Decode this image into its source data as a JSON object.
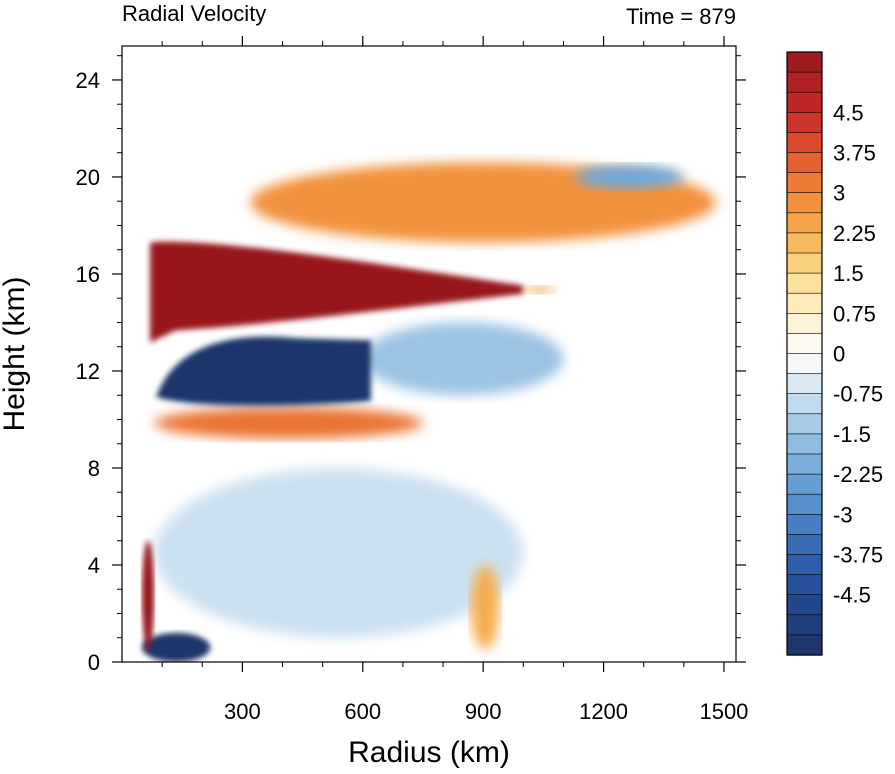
{
  "chart_data": {
    "type": "heatmap",
    "title": "Radial Velocity",
    "subtitle_right": "Time = 879",
    "xlabel": "Radius (km)",
    "ylabel": "Height (km)",
    "xlim": [
      0,
      1530
    ],
    "ylim": [
      0,
      25.4
    ],
    "xticks": [
      300,
      600,
      900,
      1200,
      1500
    ],
    "xtick_labels": [
      "300",
      "600",
      "900",
      "1200",
      "1500"
    ],
    "yticks": [
      0,
      4,
      8,
      12,
      16,
      20,
      24
    ],
    "ytick_labels": [
      "0",
      "4",
      "8",
      "12",
      "16",
      "20",
      "24"
    ],
    "colorbar": {
      "min": -5.625,
      "max": 5.625,
      "step": 0.375,
      "tick_values": [
        4.5,
        3.75,
        3,
        2.25,
        1.5,
        0.75,
        0,
        -0.75,
        -1.5,
        -2.25,
        -3,
        -3.75,
        -4.5
      ],
      "tick_labels": [
        "4.5",
        "3.75",
        "3",
        "2.25",
        "1.5",
        "0.75",
        "0",
        "-0.75",
        "-1.5",
        "-2.25",
        "-3",
        "-3.75",
        "-4.5"
      ]
    },
    "features": [
      {
        "name": "upper outflow jet",
        "value": 5.6,
        "x_range": [
          70,
          1000
        ],
        "z_range": [
          14,
          17.3
        ]
      },
      {
        "name": "outflow tail",
        "value": 2.5,
        "x_range": [
          1000,
          1080
        ],
        "z_range": [
          15.2,
          15.5
        ]
      },
      {
        "name": "upper inflow core",
        "value": -5.5,
        "x_range": [
          85,
          620
        ],
        "z_range": [
          10.6,
          13.6
        ]
      },
      {
        "name": "upper inflow extension",
        "value": -1.5,
        "x_range": [
          600,
          1100
        ],
        "z_range": [
          11,
          14
        ]
      },
      {
        "name": "mid-level outflow band",
        "value": 3.3,
        "x_range": [
          80,
          750
        ],
        "z_range": [
          9.2,
          10.5
        ]
      },
      {
        "name": "high-level outflow patches",
        "value": 2.8,
        "x_range": [
          320,
          1480
        ],
        "z_range": [
          17.3,
          20.6
        ]
      },
      {
        "name": "high-level inflow patch",
        "value": -2.2,
        "x_range": [
          1130,
          1400
        ],
        "z_range": [
          19.5,
          20.5
        ]
      },
      {
        "name": "boundary-layer inflow",
        "value": -5.5,
        "x_range": [
          50,
          220
        ],
        "z_range": [
          0,
          1.2
        ]
      },
      {
        "name": "eyewall low-level outflow",
        "value": 5.6,
        "x_range": [
          50,
          80
        ],
        "z_range": [
          0.5,
          5
        ]
      },
      {
        "name": "low-level outflow near 900 km",
        "value": 2.3,
        "x_range": [
          870,
          940
        ],
        "z_range": [
          0.5,
          4
        ]
      },
      {
        "name": "weak mid-level inflow",
        "value": -1.0,
        "x_range": [
          80,
          1000
        ],
        "z_range": [
          1,
          8
        ]
      }
    ]
  }
}
